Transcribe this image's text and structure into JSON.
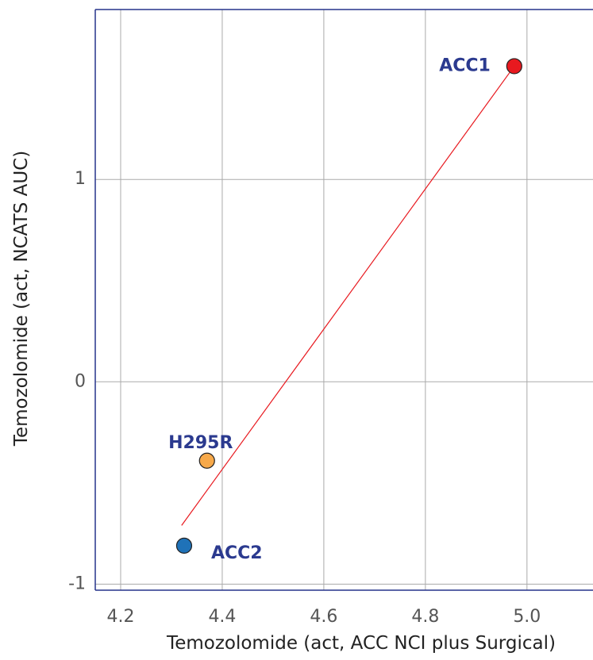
{
  "chart_data": {
    "type": "scatter",
    "title": "",
    "xlabel": "Temozolomide (act, ACC NCI plus Surgical)",
    "ylabel": "Temozolomide (act, NCATS AUC)",
    "xlim": [
      4.15,
      5.13
    ],
    "ylim": [
      -1.03,
      1.84
    ],
    "x_ticks": [
      4.2,
      4.4,
      4.6,
      4.8,
      5.0
    ],
    "x_tick_labels": [
      "4.2",
      "4.4",
      "4.6",
      "4.8",
      "5.0"
    ],
    "y_ticks": [
      -1,
      0,
      1
    ],
    "y_tick_labels": [
      "-1",
      "0",
      "1"
    ],
    "grid": true,
    "points": [
      {
        "label": "ACC1",
        "x": 4.975,
        "y": 1.56,
        "color": "#e8191f"
      },
      {
        "label": "H295R",
        "x": 4.37,
        "y": -0.39,
        "color": "#f7a94a"
      },
      {
        "label": "ACC2",
        "x": 4.325,
        "y": -0.81,
        "color": "#1f72b8"
      }
    ],
    "trendline": {
      "x": [
        4.32,
        4.975
      ],
      "y": [
        -0.71,
        1.56
      ],
      "color": "#e8191f"
    }
  }
}
